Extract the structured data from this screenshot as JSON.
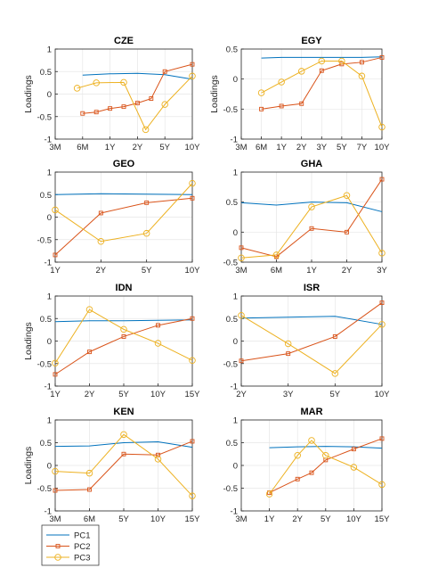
{
  "colors": {
    "pc1": "#0072BD",
    "pc2": "#D95319",
    "pc3": "#EDB120",
    "grid": "#e6e6e6",
    "axis": "#262626"
  },
  "legend": {
    "items": [
      "PC1",
      "PC2",
      "PC3"
    ],
    "placement": "bottom-left"
  },
  "chart_data": [
    {
      "type": "line",
      "title": "CZE",
      "ylabel": "Loadings",
      "grid": true,
      "ylim": [
        -1,
        1
      ],
      "yticks": [
        "-1",
        "-0.5",
        "0",
        "0.5",
        "1"
      ],
      "ytick_values": [
        -1,
        -0.5,
        0,
        0.5,
        1
      ],
      "xticks": [
        "3M",
        "6M",
        "1Y",
        "2Y",
        "5Y",
        "10Y"
      ],
      "xlim": [
        0,
        5
      ],
      "series": [
        {
          "name": "PC1",
          "x": [
            1,
            2,
            3,
            4,
            5
          ],
          "values": [
            0.42,
            0.45,
            0.46,
            0.43,
            0.33
          ]
        },
        {
          "name": "PC2",
          "x": [
            1,
            1.5,
            2,
            2.5,
            3,
            3.5,
            4,
            5
          ],
          "values": [
            -0.43,
            -0.4,
            -0.32,
            -0.28,
            -0.2,
            -0.1,
            0.5,
            0.66
          ]
        },
        {
          "name": "PC3",
          "x": [
            0.8,
            1.5,
            2.5,
            3.3,
            4,
            5
          ],
          "values": [
            0.13,
            0.25,
            0.26,
            -0.79,
            -0.23,
            0.4
          ]
        }
      ]
    },
    {
      "type": "line",
      "title": "EGY",
      "ylabel": "Loadings",
      "grid": true,
      "ylim": [
        -1,
        0.5
      ],
      "yticks": [
        "-1",
        "-0.5",
        "0",
        "0.5"
      ],
      "ytick_values": [
        -1,
        -0.5,
        0,
        0.5
      ],
      "xticks": [
        "3M",
        "6M",
        "1Y",
        "2Y",
        "3Y",
        "5Y",
        "7Y",
        "10Y"
      ],
      "xlim": [
        0,
        7
      ],
      "series": [
        {
          "name": "PC1",
          "x": [
            1,
            2,
            3,
            4,
            5,
            6,
            7
          ],
          "values": [
            0.35,
            0.36,
            0.36,
            0.36,
            0.36,
            0.36,
            0.37
          ]
        },
        {
          "name": "PC2",
          "x": [
            1,
            2,
            3,
            4,
            5,
            6,
            7
          ],
          "values": [
            -0.5,
            -0.45,
            -0.41,
            0.14,
            0.25,
            0.28,
            0.36
          ]
        },
        {
          "name": "PC3",
          "x": [
            1,
            2,
            3,
            4,
            5,
            6,
            7
          ],
          "values": [
            -0.23,
            -0.05,
            0.13,
            0.3,
            0.3,
            0.05,
            -0.8
          ]
        }
      ]
    },
    {
      "type": "line",
      "title": "GEO",
      "ylabel": "",
      "grid": true,
      "ylim": [
        -1,
        1
      ],
      "yticks": [
        "-1",
        "-0.5",
        "0",
        "0.5",
        "1"
      ],
      "ytick_values": [
        -1,
        -0.5,
        0,
        0.5,
        1
      ],
      "xticks": [
        "1Y",
        "2Y",
        "5Y",
        "10Y"
      ],
      "xlim": [
        0,
        3
      ],
      "series": [
        {
          "name": "PC1",
          "x": [
            0,
            1,
            2,
            3
          ],
          "values": [
            0.5,
            0.52,
            0.51,
            0.5
          ]
        },
        {
          "name": "PC2",
          "x": [
            0,
            1,
            2,
            3
          ],
          "values": [
            -0.84,
            0.09,
            0.32,
            0.42
          ]
        },
        {
          "name": "PC3",
          "x": [
            0,
            1,
            2,
            3
          ],
          "values": [
            0.16,
            -0.54,
            -0.36,
            0.75
          ]
        }
      ]
    },
    {
      "type": "line",
      "title": "GHA",
      "ylabel": "",
      "grid": true,
      "ylim": [
        -0.5,
        1
      ],
      "yticks": [
        "-0.5",
        "0",
        "0.5",
        "1"
      ],
      "ytick_values": [
        -0.5,
        0,
        0.5,
        1
      ],
      "xticks": [
        "3M",
        "6M",
        "1Y",
        "2Y",
        "3Y"
      ],
      "xlim": [
        0,
        4
      ],
      "series": [
        {
          "name": "PC1",
          "x": [
            0,
            1,
            2,
            3,
            4
          ],
          "values": [
            0.49,
            0.45,
            0.5,
            0.49,
            0.34
          ]
        },
        {
          "name": "PC2",
          "x": [
            0,
            1,
            2,
            3,
            4
          ],
          "values": [
            -0.26,
            -0.41,
            0.06,
            0.0,
            0.88
          ]
        },
        {
          "name": "PC3",
          "x": [
            0,
            1,
            2,
            3,
            4
          ],
          "values": [
            -0.43,
            -0.38,
            0.42,
            0.61,
            -0.35
          ]
        }
      ]
    },
    {
      "type": "line",
      "title": "IDN",
      "ylabel": "Loadings",
      "grid": true,
      "ylim": [
        -1,
        1
      ],
      "yticks": [
        "-1",
        "-0.5",
        "0",
        "0.5",
        "1"
      ],
      "ytick_values": [
        -1,
        -0.5,
        0,
        0.5,
        1
      ],
      "xticks": [
        "1Y",
        "2Y",
        "5Y",
        "10Y",
        "15Y"
      ],
      "xlim": [
        0,
        4
      ],
      "series": [
        {
          "name": "PC1",
          "x": [
            0,
            1,
            2,
            3,
            4
          ],
          "values": [
            0.43,
            0.45,
            0.45,
            0.46,
            0.47
          ]
        },
        {
          "name": "PC2",
          "x": [
            0,
            1,
            2,
            3,
            4
          ],
          "values": [
            -0.74,
            -0.24,
            0.1,
            0.35,
            0.5
          ]
        },
        {
          "name": "PC3",
          "x": [
            0,
            1,
            2,
            3,
            4
          ],
          "values": [
            -0.49,
            0.7,
            0.26,
            -0.05,
            -0.43
          ]
        }
      ]
    },
    {
      "type": "line",
      "title": "ISR",
      "ylabel": "",
      "grid": true,
      "ylim": [
        -1,
        1
      ],
      "yticks": [
        "-1",
        "-0.5",
        "0",
        "0.5",
        "1"
      ],
      "ytick_values": [
        -1,
        -0.5,
        0,
        0.5,
        1
      ],
      "xticks": [
        "2Y",
        "3Y",
        "5Y",
        "10Y"
      ],
      "xlim": [
        0,
        3
      ],
      "series": [
        {
          "name": "PC1",
          "x": [
            0,
            1,
            2,
            3
          ],
          "values": [
            0.51,
            0.53,
            0.55,
            0.37
          ]
        },
        {
          "name": "PC2",
          "x": [
            0,
            1,
            2,
            3
          ],
          "values": [
            -0.44,
            -0.28,
            0.1,
            0.85
          ]
        },
        {
          "name": "PC3",
          "x": [
            0,
            1,
            2,
            3
          ],
          "values": [
            0.57,
            -0.06,
            -0.72,
            0.37
          ]
        }
      ]
    },
    {
      "type": "line",
      "title": "KEN",
      "ylabel": "Loadings",
      "grid": true,
      "ylim": [
        -1,
        1
      ],
      "yticks": [
        "-1",
        "-0.5",
        "0",
        "0.5",
        "1"
      ],
      "ytick_values": [
        -1,
        -0.5,
        0,
        0.5,
        1
      ],
      "xticks": [
        "3M",
        "6M",
        "5Y",
        "10Y",
        "15Y"
      ],
      "xlim": [
        0,
        4
      ],
      "series": [
        {
          "name": "PC1",
          "x": [
            0,
            1,
            2,
            3,
            4
          ],
          "values": [
            0.42,
            0.43,
            0.5,
            0.52,
            0.4
          ]
        },
        {
          "name": "PC2",
          "x": [
            0,
            1,
            2,
            3,
            4
          ],
          "values": [
            -0.55,
            -0.53,
            0.25,
            0.23,
            0.53
          ]
        },
        {
          "name": "PC3",
          "x": [
            0,
            1,
            2,
            3,
            4
          ],
          "values": [
            -0.13,
            -0.17,
            0.68,
            0.14,
            -0.67
          ]
        }
      ]
    },
    {
      "type": "line",
      "title": "MAR",
      "ylabel": "",
      "grid": true,
      "ylim": [
        -1,
        1
      ],
      "yticks": [
        "-1",
        "-0.5",
        "0",
        "0.5",
        "1"
      ],
      "ytick_values": [
        -1,
        -0.5,
        0,
        0.5,
        1
      ],
      "xticks": [
        "3M",
        "1Y",
        "2Y",
        "5Y",
        "10Y",
        "15Y"
      ],
      "xlim": [
        0,
        5
      ],
      "series": [
        {
          "name": "PC1",
          "x": [
            1,
            2,
            3,
            4,
            5
          ],
          "values": [
            0.39,
            0.41,
            0.42,
            0.41,
            0.38
          ]
        },
        {
          "name": "PC2",
          "x": [
            1,
            2,
            2.5,
            3,
            4,
            5
          ],
          "values": [
            -0.6,
            -0.3,
            -0.16,
            0.12,
            0.36,
            0.59
          ]
        },
        {
          "name": "PC3",
          "x": [
            1,
            2,
            2.5,
            3,
            4,
            5
          ],
          "values": [
            -0.63,
            0.22,
            0.55,
            0.22,
            -0.04,
            -0.42
          ]
        }
      ]
    }
  ]
}
